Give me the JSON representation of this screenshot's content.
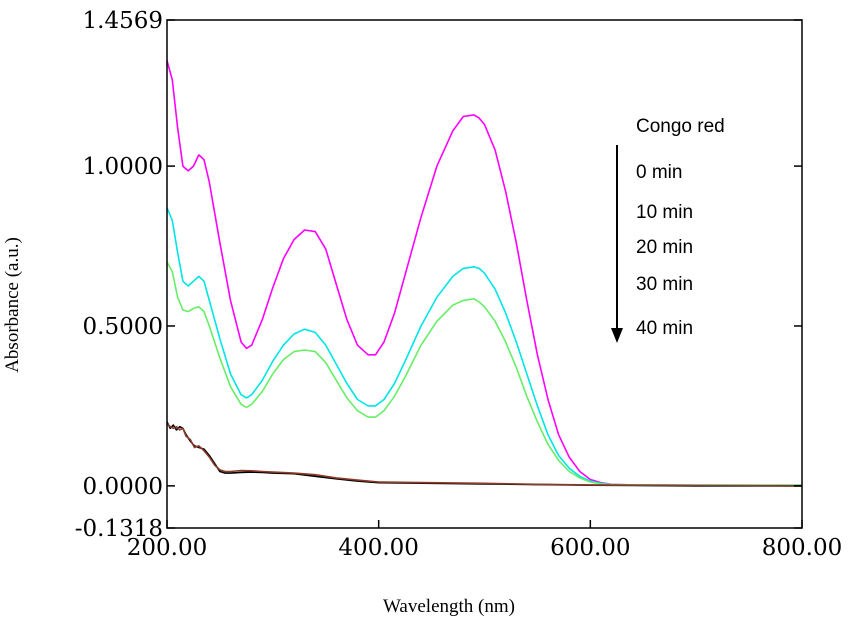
{
  "chart_data": {
    "type": "line",
    "xlabel": "Wavelength (nm)",
    "ylabel": "Absorbance (a.u.)",
    "xlim": [
      200,
      800
    ],
    "ylim": [
      -0.1318,
      1.4569
    ],
    "x_ticks": [
      "200.00",
      "400.00",
      "600.00",
      "800.00"
    ],
    "y_ticks": [
      {
        "value": 1.4569,
        "label": "1.4569"
      },
      {
        "value": 1.0,
        "label": "1.0000"
      },
      {
        "value": 0.5,
        "label": "0.5000"
      },
      {
        "value": 0.0,
        "label": "0.0000"
      },
      {
        "value": -0.1318,
        "label": "-0.1318"
      }
    ],
    "legend": {
      "title": "Congo red",
      "entries": [
        "0 min",
        "10 min",
        "20 min",
        "30 min",
        "40 min"
      ],
      "arrow": "down"
    },
    "series": [
      {
        "color": "#ff00ff",
        "x": [
          200,
          205,
          210,
          215,
          220,
          225,
          230,
          235,
          240,
          250,
          260,
          270,
          275,
          280,
          290,
          300,
          310,
          320,
          330,
          340,
          350,
          360,
          370,
          380,
          390,
          397,
          405,
          415,
          425,
          440,
          455,
          470,
          480,
          490,
          495,
          500,
          510,
          520,
          530,
          540,
          550,
          560,
          570,
          580,
          590,
          600,
          610,
          620,
          640,
          700,
          800
        ],
        "y": [
          1.33,
          1.27,
          1.12,
          1.0,
          0.985,
          1.0,
          1.035,
          1.02,
          0.95,
          0.76,
          0.58,
          0.45,
          0.43,
          0.44,
          0.52,
          0.62,
          0.71,
          0.77,
          0.8,
          0.795,
          0.74,
          0.63,
          0.52,
          0.44,
          0.41,
          0.41,
          0.45,
          0.54,
          0.66,
          0.84,
          1.0,
          1.11,
          1.155,
          1.16,
          1.15,
          1.13,
          1.05,
          0.92,
          0.76,
          0.58,
          0.41,
          0.27,
          0.16,
          0.09,
          0.045,
          0.02,
          0.01,
          0.005,
          0.003,
          0.002,
          0.002
        ]
      },
      {
        "color": "#00e5e5",
        "x": [
          200,
          205,
          210,
          215,
          220,
          225,
          230,
          235,
          240,
          250,
          260,
          270,
          275,
          280,
          290,
          300,
          310,
          320,
          330,
          340,
          350,
          360,
          370,
          380,
          390,
          397,
          405,
          415,
          425,
          440,
          455,
          470,
          480,
          490,
          495,
          500,
          510,
          520,
          530,
          540,
          550,
          560,
          570,
          580,
          590,
          600,
          610,
          620,
          640,
          700,
          800
        ],
        "y": [
          0.87,
          0.83,
          0.73,
          0.64,
          0.625,
          0.64,
          0.655,
          0.64,
          0.58,
          0.46,
          0.35,
          0.285,
          0.275,
          0.285,
          0.33,
          0.39,
          0.44,
          0.475,
          0.49,
          0.48,
          0.44,
          0.38,
          0.32,
          0.27,
          0.25,
          0.25,
          0.27,
          0.32,
          0.39,
          0.5,
          0.59,
          0.655,
          0.68,
          0.685,
          0.68,
          0.665,
          0.615,
          0.54,
          0.45,
          0.35,
          0.25,
          0.16,
          0.095,
          0.055,
          0.03,
          0.015,
          0.008,
          0.004,
          0.003,
          0.002,
          0.002
        ]
      },
      {
        "color": "#66ee66",
        "x": [
          200,
          205,
          210,
          215,
          220,
          225,
          230,
          235,
          240,
          250,
          260,
          270,
          275,
          280,
          290,
          300,
          310,
          320,
          330,
          340,
          350,
          360,
          370,
          380,
          390,
          397,
          405,
          415,
          425,
          440,
          455,
          470,
          480,
          490,
          495,
          500,
          510,
          520,
          530,
          540,
          550,
          560,
          570,
          580,
          590,
          600,
          610,
          620,
          640,
          700,
          800
        ],
        "y": [
          0.7,
          0.67,
          0.59,
          0.55,
          0.545,
          0.555,
          0.56,
          0.545,
          0.5,
          0.4,
          0.31,
          0.255,
          0.245,
          0.255,
          0.295,
          0.35,
          0.395,
          0.42,
          0.425,
          0.42,
          0.385,
          0.33,
          0.275,
          0.235,
          0.215,
          0.215,
          0.235,
          0.28,
          0.34,
          0.44,
          0.515,
          0.565,
          0.58,
          0.585,
          0.575,
          0.56,
          0.515,
          0.45,
          0.37,
          0.28,
          0.2,
          0.13,
          0.08,
          0.045,
          0.025,
          0.012,
          0.006,
          0.004,
          0.003,
          0.002,
          0.002
        ]
      },
      {
        "color": "#000000",
        "x": [
          200,
          203,
          206,
          209,
          212,
          215,
          218,
          222,
          226,
          230,
          235,
          240,
          245,
          250,
          255,
          260,
          270,
          280,
          290,
          300,
          320,
          340,
          360,
          380,
          400,
          450,
          500,
          550,
          600,
          700,
          800
        ],
        "y": [
          0.2,
          0.18,
          0.19,
          0.175,
          0.185,
          0.18,
          0.16,
          0.14,
          0.125,
          0.12,
          0.115,
          0.095,
          0.07,
          0.045,
          0.04,
          0.04,
          0.042,
          0.043,
          0.042,
          0.04,
          0.038,
          0.03,
          0.022,
          0.015,
          0.01,
          0.008,
          0.006,
          0.004,
          0.002,
          0.0,
          0.0
        ]
      },
      {
        "color": "#8b3a2b",
        "x": [
          200,
          203,
          206,
          209,
          212,
          215,
          218,
          222,
          226,
          230,
          235,
          240,
          245,
          250,
          255,
          260,
          270,
          280,
          290,
          300,
          320,
          340,
          360,
          380,
          400,
          450,
          500,
          550,
          600,
          700,
          800
        ],
        "y": [
          0.195,
          0.185,
          0.18,
          0.185,
          0.175,
          0.18,
          0.155,
          0.145,
          0.12,
          0.125,
          0.11,
          0.09,
          0.065,
          0.05,
          0.045,
          0.045,
          0.048,
          0.047,
          0.045,
          0.043,
          0.04,
          0.035,
          0.025,
          0.018,
          0.012,
          0.01,
          0.008,
          0.005,
          0.003,
          0.001,
          0.0
        ]
      }
    ]
  }
}
